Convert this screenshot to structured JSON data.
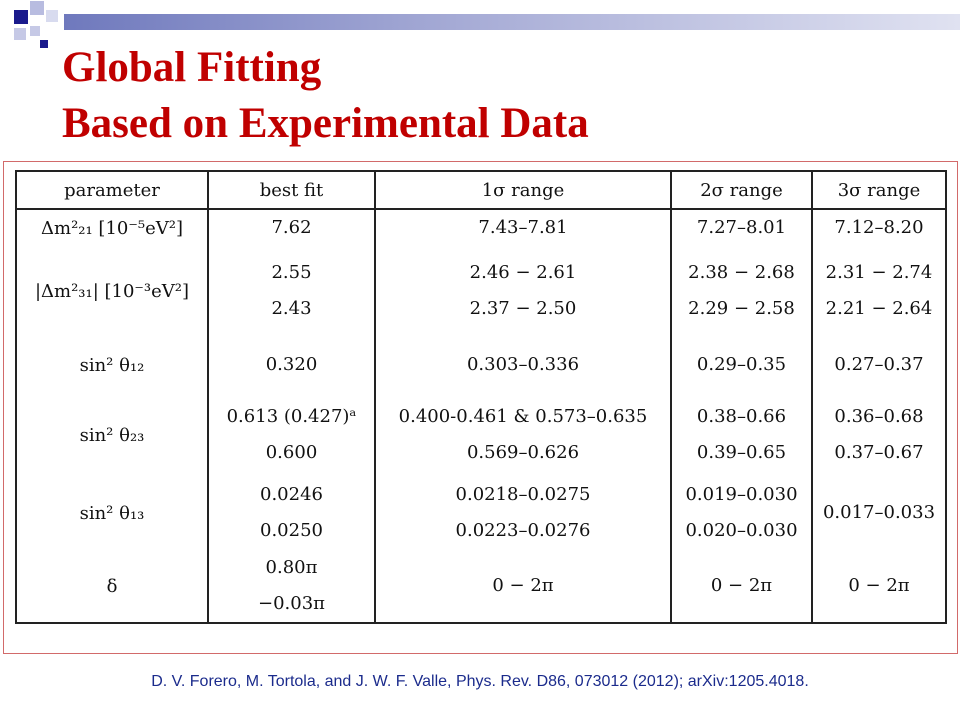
{
  "slide": {
    "title_line1": "Global Fitting",
    "title_line2": "Based on Experimental Data",
    "citation": "D. V. Forero, M. Tortola, and J. W. F. Valle, Phys. Rev. D86, 073012 (2012); arXiv:1205.4018."
  },
  "table": {
    "headers": [
      "parameter",
      "best fit",
      "1σ range",
      "2σ range",
      "3σ range"
    ],
    "rows": [
      {
        "param": "Δm²₂₁ [10⁻⁵eV²]",
        "best": [
          "7.62"
        ],
        "s1": [
          "7.43–7.81"
        ],
        "s2": [
          "7.27–8.01"
        ],
        "s3": [
          "7.12–8.20"
        ]
      },
      {
        "param": "|Δm²₃₁| [10⁻³eV²]",
        "best": [
          "2.55",
          "2.43"
        ],
        "s1": [
          "2.46 − 2.61",
          "2.37 − 2.50"
        ],
        "s2": [
          "2.38 − 2.68",
          "2.29 − 2.58"
        ],
        "s3": [
          "2.31 − 2.74",
          "2.21 − 2.64"
        ]
      },
      {
        "param": "sin² θ₁₂",
        "best": [
          "0.320"
        ],
        "s1": [
          "0.303–0.336"
        ],
        "s2": [
          "0.29–0.35"
        ],
        "s3": [
          "0.27–0.37"
        ]
      },
      {
        "param": "sin² θ₂₃",
        "best": [
          "0.613 (0.427)ᵃ",
          "0.600"
        ],
        "s1": [
          "0.400-0.461 & 0.573–0.635",
          "0.569–0.626"
        ],
        "s2": [
          "0.38–0.66",
          "0.39–0.65"
        ],
        "s3": [
          "0.36–0.68",
          "0.37–0.67"
        ]
      },
      {
        "param": "sin² θ₁₃",
        "best": [
          "0.0246",
          "0.0250"
        ],
        "s1": [
          "0.0218–0.0275",
          "0.0223–0.0276"
        ],
        "s2": [
          "0.019–0.030",
          "0.020–0.030"
        ],
        "s3": [
          "0.017–0.033"
        ]
      },
      {
        "param": "δ",
        "best": [
          "0.80π",
          "−0.03π"
        ],
        "s1": [
          "0 − 2π"
        ],
        "s2": [
          "0 − 2π"
        ],
        "s3": [
          "0 − 2π"
        ]
      }
    ]
  }
}
